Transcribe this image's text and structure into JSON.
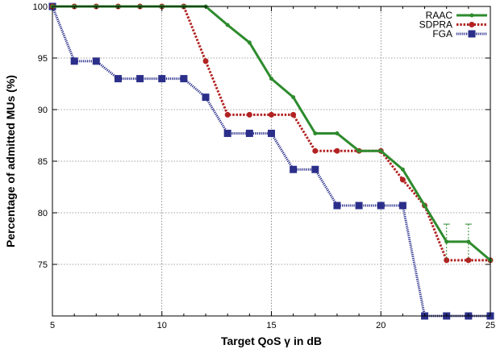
{
  "chart_data": {
    "type": "line",
    "title": "",
    "xlabel": "Target QoS γ in dB",
    "ylabel": "Percentage of admitted MUs (%)",
    "xlim": [
      5,
      25
    ],
    "ylim": [
      70,
      100
    ],
    "xticks": [
      5,
      10,
      15,
      20,
      25
    ],
    "yticks": [
      75,
      80,
      85,
      90,
      95,
      100
    ],
    "grid": true,
    "legend_position": "top-right",
    "x": [
      5,
      6,
      7,
      8,
      9,
      10,
      11,
      12,
      13,
      14,
      15,
      16,
      17,
      18,
      19,
      20,
      21,
      22,
      23,
      24,
      25
    ],
    "series": [
      {
        "name": "RAAC",
        "color": "#2e8b2e",
        "line_style": "solid",
        "marker": "circle",
        "values": [
          100,
          100,
          100,
          100,
          100,
          100,
          100,
          100,
          98.2,
          96.5,
          93,
          91.2,
          87.7,
          87.7,
          86,
          86,
          84.2,
          80.7,
          77.2,
          77.2,
          75.4
        ]
      },
      {
        "name": "SDPRA",
        "color": "#b22222",
        "line_style": "dotted",
        "marker": "circle",
        "values": [
          100,
          100,
          100,
          100,
          100,
          100,
          100,
          94.7,
          89.5,
          89.5,
          89.5,
          89.5,
          86,
          86,
          86,
          86,
          83.2,
          80.7,
          75.4,
          75.4,
          75.4
        ]
      },
      {
        "name": "FGA",
        "color": "#2b2f8a",
        "line_style": "dotted",
        "marker": "square",
        "values": [
          100,
          94.7,
          94.7,
          93,
          93,
          93,
          93,
          91.2,
          87.7,
          87.7,
          87.7,
          84.2,
          84.2,
          80.7,
          80.7,
          80.7,
          80.7,
          70,
          70,
          70,
          70
        ]
      }
    ],
    "error_bars": [
      {
        "x": 23.5,
        "low": 75.4,
        "high": 78.9,
        "color": "#2e8b2e"
      }
    ]
  }
}
